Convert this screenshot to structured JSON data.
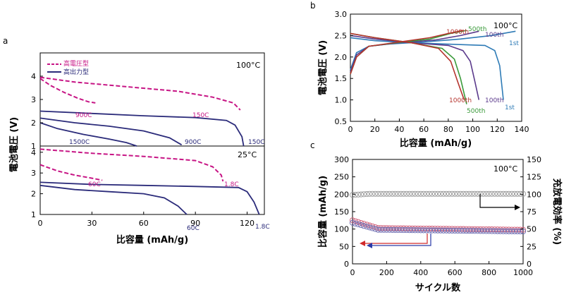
{
  "chart_data": [
    {
      "panel": "a",
      "type": "line",
      "xlabel": "比容量 (mAh/g)",
      "ylabel": "電池電圧 (V)",
      "x_ticks": [
        "0",
        "30",
        "60",
        "90",
        "120"
      ],
      "xlim": [
        0,
        130
      ],
      "legend": {
        "placement": "top-left",
        "entries": [
          {
            "name": "高電圧型",
            "color": "#c71585",
            "style": "dashed"
          },
          {
            "name": "高出力型",
            "color": "#2b2b7a",
            "style": "solid"
          }
        ]
      },
      "subplots": [
        {
          "condition": "100°C",
          "ylim": [
            1,
            5
          ],
          "y_ticks": [
            "1",
            "2",
            "3",
            "4"
          ],
          "series": [
            {
              "label": "900C",
              "type": "high-voltage",
              "color": "#c71585",
              "dashed": true,
              "points": [
                [
                  0,
                  3.9
                ],
                [
                  6,
                  3.6
                ],
                [
                  14,
                  3.3
                ],
                [
                  22,
                  3.05
                ],
                [
                  28,
                  2.9
                ],
                [
                  32,
                  2.85
                ]
              ]
            },
            {
              "label": "150C",
              "type": "high-voltage",
              "color": "#c71585",
              "dashed": true,
              "points": [
                [
                  0,
                  3.95
                ],
                [
                  20,
                  3.75
                ],
                [
                  50,
                  3.55
                ],
                [
                  80,
                  3.35
                ],
                [
                  100,
                  3.1
                ],
                [
                  112,
                  2.85
                ],
                [
                  116,
                  2.55
                ]
              ]
            },
            {
              "label": "1500C",
              "type": "high-power",
              "color": "#2b2b7a",
              "dashed": false,
              "points": [
                [
                  0,
                  2.0
                ],
                [
                  10,
                  1.75
                ],
                [
                  25,
                  1.5
                ],
                [
                  40,
                  1.3
                ],
                [
                  50,
                  1.15
                ],
                [
                  56,
                  1.0
                ]
              ]
            },
            {
              "label": "900C",
              "type": "high-power",
              "color": "#2b2b7a",
              "dashed": false,
              "points": [
                [
                  0,
                  2.2
                ],
                [
                  20,
                  2.0
                ],
                [
                  40,
                  1.85
                ],
                [
                  60,
                  1.65
                ],
                [
                  75,
                  1.35
                ],
                [
                  82,
                  1.05
                ]
              ]
            },
            {
              "label": "150C",
              "type": "high-power",
              "color": "#2b2b7a",
              "dashed": false,
              "points": [
                [
                  0,
                  2.5
                ],
                [
                  30,
                  2.4
                ],
                [
                  60,
                  2.3
                ],
                [
                  90,
                  2.22
                ],
                [
                  108,
                  2.1
                ],
                [
                  113,
                  1.9
                ],
                [
                  117,
                  1.4
                ],
                [
                  118,
                  1.0
                ]
              ]
            }
          ]
        },
        {
          "condition": "25°C",
          "ylim": [
            1,
            4.3
          ],
          "y_ticks": [
            "1",
            "2",
            "3",
            "4"
          ],
          "series": [
            {
              "label": "60C",
              "type": "high-voltage",
              "color": "#c71585",
              "dashed": true,
              "points": [
                [
                  0,
                  3.4
                ],
                [
                  10,
                  3.1
                ],
                [
                  20,
                  2.9
                ],
                [
                  30,
                  2.75
                ],
                [
                  36,
                  2.65
                ]
              ]
            },
            {
              "label": "1.8C",
              "type": "high-voltage",
              "color": "#c71585",
              "dashed": true,
              "points": [
                [
                  0,
                  4.15
                ],
                [
                  30,
                  3.95
                ],
                [
                  60,
                  3.8
                ],
                [
                  90,
                  3.6
                ],
                [
                  100,
                  3.3
                ],
                [
                  105,
                  2.9
                ],
                [
                  106,
                  2.6
                ]
              ]
            },
            {
              "label": "60C",
              "type": "high-power",
              "color": "#2b2b7a",
              "dashed": false,
              "points": [
                [
                  0,
                  2.4
                ],
                [
                  20,
                  2.2
                ],
                [
                  40,
                  2.1
                ],
                [
                  60,
                  2.0
                ],
                [
                  72,
                  1.8
                ],
                [
                  80,
                  1.4
                ],
                [
                  85,
                  1.0
                ]
              ]
            },
            {
              "label": "1.8C",
              "type": "high-power",
              "color": "#2b2b7a",
              "dashed": false,
              "points": [
                [
                  0,
                  2.55
                ],
                [
                  30,
                  2.45
                ],
                [
                  60,
                  2.4
                ],
                [
                  90,
                  2.35
                ],
                [
                  115,
                  2.3
                ],
                [
                  120,
                  2.1
                ],
                [
                  124,
                  1.6
                ],
                [
                  127,
                  1.0
                ]
              ]
            }
          ]
        }
      ]
    },
    {
      "panel": "b",
      "type": "line",
      "condition": "100°C",
      "xlabel": "比容量 (mAh/g)",
      "ylabel": "電池電圧 (V)",
      "xlim": [
        0,
        140
      ],
      "ylim": [
        0.5,
        3.0
      ],
      "x_ticks": [
        "0",
        "20",
        "40",
        "60",
        "80",
        "100",
        "120",
        "140"
      ],
      "y_ticks": [
        "0.5",
        "1.0",
        "1.5",
        "2.0",
        "2.5",
        "3.0"
      ],
      "series": [
        {
          "name": "1st",
          "color": "#2e7bb6",
          "charge": [
            [
              0,
              1.7
            ],
            [
              5,
              2.1
            ],
            [
              15,
              2.25
            ],
            [
              30,
              2.3
            ],
            [
              60,
              2.35
            ],
            [
              90,
              2.42
            ],
            [
              115,
              2.5
            ],
            [
              135,
              2.6
            ]
          ],
          "discharge": [
            [
              0,
              2.45
            ],
            [
              20,
              2.38
            ],
            [
              50,
              2.33
            ],
            [
              80,
              2.3
            ],
            [
              110,
              2.27
            ],
            [
              118,
              2.15
            ],
            [
              122,
              1.8
            ],
            [
              125,
              1.0
            ]
          ]
        },
        {
          "name": "100th",
          "color": "#5b3a8c",
          "charge": [
            [
              0,
              1.65
            ],
            [
              5,
              2.05
            ],
            [
              15,
              2.25
            ],
            [
              40,
              2.33
            ],
            [
              70,
              2.4
            ],
            [
              90,
              2.5
            ],
            [
              105,
              2.6
            ]
          ],
          "discharge": [
            [
              0,
              2.5
            ],
            [
              20,
              2.42
            ],
            [
              50,
              2.33
            ],
            [
              80,
              2.27
            ],
            [
              92,
              2.15
            ],
            [
              98,
              1.9
            ],
            [
              102,
              1.4
            ],
            [
              105,
              1.0
            ]
          ]
        },
        {
          "name": "500th",
          "color": "#3a9a3a",
          "charge": [
            [
              0,
              1.6
            ],
            [
              5,
              2.0
            ],
            [
              15,
              2.25
            ],
            [
              40,
              2.34
            ],
            [
              65,
              2.42
            ],
            [
              82,
              2.55
            ],
            [
              95,
              2.62
            ]
          ],
          "discharge": [
            [
              0,
              2.55
            ],
            [
              20,
              2.45
            ],
            [
              50,
              2.33
            ],
            [
              75,
              2.2
            ],
            [
              85,
              1.95
            ],
            [
              90,
              1.5
            ],
            [
              95,
              0.9
            ]
          ]
        },
        {
          "name": "1000th",
          "color": "#b5342e",
          "charge": [
            [
              0,
              1.6
            ],
            [
              5,
              2.0
            ],
            [
              15,
              2.25
            ],
            [
              40,
              2.35
            ],
            [
              65,
              2.45
            ],
            [
              80,
              2.55
            ],
            [
              92,
              2.62
            ]
          ],
          "discharge": [
            [
              0,
              2.55
            ],
            [
              20,
              2.45
            ],
            [
              50,
              2.33
            ],
            [
              72,
              2.2
            ],
            [
              82,
              1.9
            ],
            [
              88,
              1.4
            ],
            [
              93,
              1.0
            ]
          ]
        }
      ]
    },
    {
      "panel": "c",
      "type": "scatter",
      "condition": "100°C",
      "xlabel": "サイクル数",
      "ylabel": "比容量 (mAh/g)",
      "ylabel_right": "充放電効率 (%)",
      "xlim": [
        0,
        1000
      ],
      "ylim": [
        0,
        300
      ],
      "ylim_right": [
        0,
        150
      ],
      "x_ticks": [
        "0",
        "200",
        "400",
        "600",
        "800",
        "1000"
      ],
      "y_ticks": [
        "0",
        "50",
        "100",
        "150",
        "200",
        "250",
        "300"
      ],
      "y_ticks_right": [
        "0",
        "25",
        "50",
        "75",
        "100",
        "125",
        "150"
      ],
      "series": [
        {
          "name": "efficiency",
          "axis": "right",
          "color": "#999999",
          "start": 99,
          "end": 100.5
        },
        {
          "name": "charge capacity",
          "axis": "left",
          "color": "#d0607a",
          "start": 125,
          "plateau": 103,
          "end": 98
        },
        {
          "name": "discharge capacity",
          "axis": "left",
          "color": "#6a6ab0",
          "start": 118,
          "plateau": 98,
          "end": 93
        }
      ]
    }
  ]
}
